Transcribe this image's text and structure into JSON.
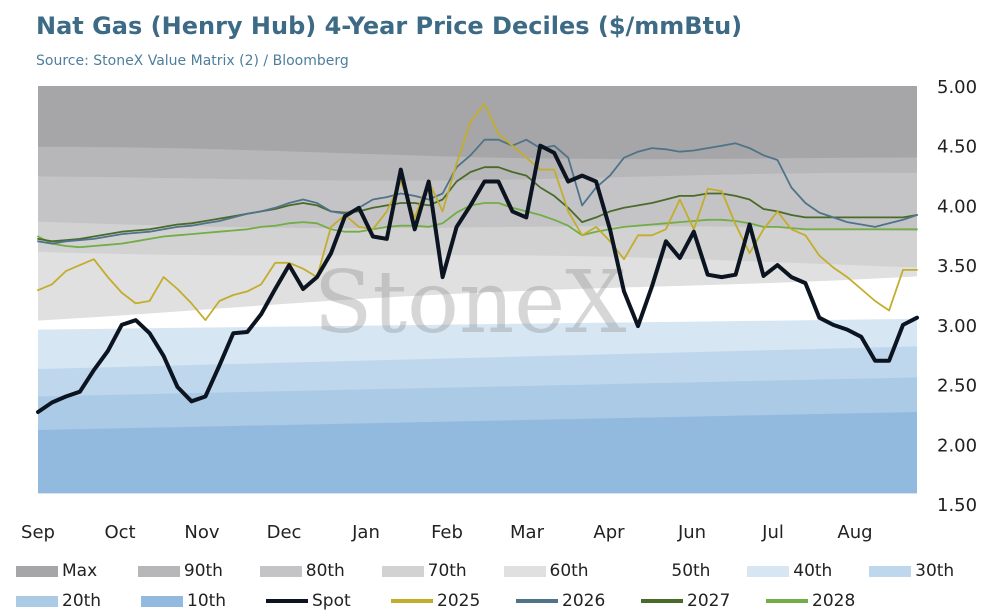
{
  "title": "Nat Gas (Henry Hub) 4-Year Price Deciles ($/mmBtu)",
  "subtitle": "Source: StoneX Value Matrix (2) / Bloomberg",
  "watermark": "StoneX",
  "chart_data": {
    "type": "area",
    "x_labels": [
      "Sep",
      "Oct",
      "Nov",
      "Dec",
      "Jan",
      "Feb",
      "Mar",
      "Apr",
      "Jun",
      "Jul",
      "Aug"
    ],
    "y_ticks": [
      "5.00",
      "4.50",
      "4.00",
      "3.50",
      "3.00",
      "2.50",
      "2.00",
      "1.50"
    ],
    "ylim": [
      1.5,
      5.0
    ],
    "grid": false,
    "legend_position": "bottom",
    "bands": [
      {
        "name": "Max",
        "color": "#a6a6a8",
        "start": 5.0,
        "end": 5.0
      },
      {
        "name": "90th",
        "color": "#b7b7b9",
        "start": 4.47,
        "end": 4.38
      },
      {
        "name": "80th",
        "color": "#c4c4c6",
        "start": 4.22,
        "end": 4.25
      },
      {
        "name": "70th",
        "color": "#d2d2d3",
        "start": 3.86,
        "end": 3.78
      },
      {
        "name": "60th",
        "color": "#e0e0e1",
        "start": 3.63,
        "end": 3.5
      },
      {
        "name": "50th",
        "color": "#ffffff",
        "start": 3.06,
        "end": 3.43
      },
      {
        "name": "40th",
        "color": "#d6e6f3",
        "start": 2.96,
        "end": 3.05
      },
      {
        "name": "30th",
        "color": "#bfd7ec",
        "start": 2.63,
        "end": 2.82
      },
      {
        "name": "20th",
        "color": "#abcae6",
        "start": 2.4,
        "end": 2.56
      },
      {
        "name": "10th",
        "color": "#92badf",
        "start": 2.12,
        "end": 2.27
      }
    ],
    "band_floor": 1.59,
    "series": [
      {
        "name": "Spot",
        "color": "#0b1420",
        "width": 4,
        "values": [
          2.27,
          2.35,
          2.4,
          2.44,
          2.62,
          2.78,
          3.0,
          3.04,
          2.93,
          2.74,
          2.48,
          2.36,
          2.4,
          2.66,
          2.93,
          2.94,
          3.09,
          3.3,
          3.5,
          3.3,
          3.4,
          3.6,
          3.91,
          3.98,
          3.74,
          3.72,
          4.3,
          3.8,
          4.2,
          3.4,
          3.82,
          4.0,
          4.2,
          4.2,
          3.95,
          3.9,
          4.5,
          4.44,
          4.2,
          4.25,
          4.2,
          3.8,
          3.28,
          2.99,
          3.32,
          3.7,
          3.56,
          3.78,
          3.42,
          3.4,
          3.42,
          3.84,
          3.41,
          3.5,
          3.4,
          3.35,
          3.06,
          3.0,
          2.96,
          2.9,
          2.7,
          2.7,
          3.0,
          3.06
        ]
      },
      {
        "name": "2025",
        "color": "#c2ad2c",
        "width": 1.8,
        "values": [
          3.29,
          3.34,
          3.45,
          3.5,
          3.55,
          3.4,
          3.27,
          3.18,
          3.2,
          3.4,
          3.3,
          3.18,
          3.04,
          3.2,
          3.25,
          3.28,
          3.34,
          3.52,
          3.52,
          3.47,
          3.4,
          3.82,
          3.92,
          3.82,
          3.8,
          3.95,
          4.2,
          3.9,
          4.2,
          3.95,
          4.35,
          4.7,
          4.85,
          4.6,
          4.5,
          4.4,
          4.3,
          4.3,
          3.95,
          3.75,
          3.82,
          3.7,
          3.55,
          3.75,
          3.75,
          3.8,
          4.05,
          3.8,
          4.14,
          4.12,
          3.84,
          3.6,
          3.8,
          3.95,
          3.8,
          3.75,
          3.58,
          3.48,
          3.4,
          3.3,
          3.2,
          3.12,
          3.46,
          3.46
        ]
      },
      {
        "name": "2026",
        "color": "#4f7388",
        "width": 1.8,
        "values": [
          3.7,
          3.68,
          3.7,
          3.71,
          3.72,
          3.74,
          3.76,
          3.77,
          3.78,
          3.8,
          3.82,
          3.83,
          3.85,
          3.87,
          3.9,
          3.93,
          3.95,
          3.98,
          4.02,
          4.05,
          4.02,
          3.95,
          3.93,
          3.98,
          4.05,
          4.07,
          4.1,
          4.08,
          4.05,
          4.1,
          4.32,
          4.42,
          4.55,
          4.55,
          4.5,
          4.55,
          4.48,
          4.5,
          4.4,
          4.0,
          4.15,
          4.25,
          4.4,
          4.45,
          4.48,
          4.47,
          4.45,
          4.46,
          4.48,
          4.5,
          4.52,
          4.48,
          4.42,
          4.38,
          4.15,
          4.02,
          3.94,
          3.9,
          3.86,
          3.84,
          3.82,
          3.85,
          3.88,
          3.92
        ]
      },
      {
        "name": "2027",
        "color": "#4a6a2a",
        "width": 1.8,
        "values": [
          3.72,
          3.7,
          3.71,
          3.72,
          3.74,
          3.76,
          3.78,
          3.79,
          3.8,
          3.82,
          3.84,
          3.85,
          3.87,
          3.89,
          3.91,
          3.93,
          3.95,
          3.97,
          4.0,
          4.02,
          4.0,
          3.95,
          3.94,
          3.95,
          3.98,
          4.0,
          4.02,
          4.02,
          4.0,
          4.05,
          4.2,
          4.28,
          4.32,
          4.32,
          4.28,
          4.25,
          4.15,
          4.08,
          3.98,
          3.86,
          3.9,
          3.95,
          3.98,
          4.0,
          4.02,
          4.05,
          4.08,
          4.08,
          4.1,
          4.1,
          4.08,
          4.05,
          3.97,
          3.95,
          3.92,
          3.9,
          3.9,
          3.9,
          3.9,
          3.9,
          3.9,
          3.9,
          3.9,
          3.92
        ]
      },
      {
        "name": "2028",
        "color": "#72ad45",
        "width": 1.8,
        "values": [
          3.74,
          3.68,
          3.66,
          3.65,
          3.66,
          3.67,
          3.68,
          3.7,
          3.72,
          3.74,
          3.75,
          3.76,
          3.77,
          3.78,
          3.79,
          3.8,
          3.82,
          3.83,
          3.85,
          3.86,
          3.85,
          3.8,
          3.78,
          3.78,
          3.8,
          3.82,
          3.83,
          3.83,
          3.82,
          3.85,
          3.94,
          4.0,
          4.02,
          4.02,
          3.98,
          3.95,
          3.92,
          3.88,
          3.83,
          3.75,
          3.78,
          3.8,
          3.82,
          3.83,
          3.84,
          3.85,
          3.86,
          3.87,
          3.88,
          3.88,
          3.87,
          3.85,
          3.82,
          3.82,
          3.81,
          3.8,
          3.8,
          3.8,
          3.8,
          3.8,
          3.8,
          3.8,
          3.8,
          3.8
        ]
      }
    ]
  },
  "legend": [
    [
      {
        "name": "Max",
        "color": "#a6a6a8",
        "kind": "band"
      },
      {
        "name": "90th",
        "color": "#b7b7b9",
        "kind": "band"
      },
      {
        "name": "80th",
        "color": "#c4c4c6",
        "kind": "band"
      },
      {
        "name": "70th",
        "color": "#d2d2d3",
        "kind": "band"
      },
      {
        "name": "60th",
        "color": "#e0e0e1",
        "kind": "band"
      },
      {
        "name": "50th",
        "color": "#ffffff",
        "kind": "band"
      },
      {
        "name": "40th",
        "color": "#d6e6f3",
        "kind": "band"
      },
      {
        "name": "30th",
        "color": "#bfd7ec",
        "kind": "band"
      }
    ],
    [
      {
        "name": "20th",
        "color": "#abcae6",
        "kind": "band"
      },
      {
        "name": "10th",
        "color": "#92badf",
        "kind": "band"
      },
      {
        "name": "Spot",
        "color": "#0b1420",
        "kind": "line"
      },
      {
        "name": "2025",
        "color": "#c2ad2c",
        "kind": "line"
      },
      {
        "name": "2026",
        "color": "#4f7388",
        "kind": "line"
      },
      {
        "name": "2027",
        "color": "#4a6a2a",
        "kind": "line"
      },
      {
        "name": "2028",
        "color": "#72ad45",
        "kind": "line"
      }
    ]
  ]
}
